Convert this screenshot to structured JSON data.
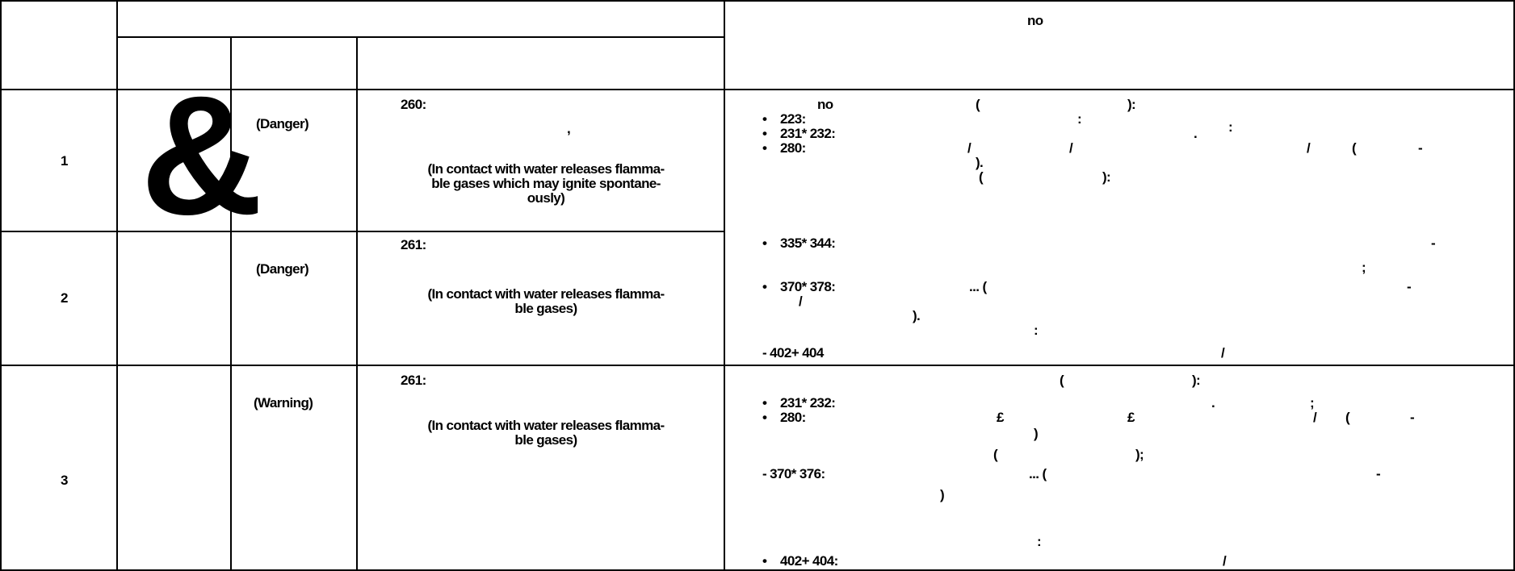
{
  "header": {
    "right_top": "no"
  },
  "rows": [
    {
      "num": "1",
      "pictogram": "&",
      "signal": "(Danger)",
      "hazard": {
        "code": "260:",
        "mark": ",",
        "en": [
          "(In contact with water releases flamma-",
          "ble gases which may ignite spontane-",
          "ously)"
        ]
      }
    },
    {
      "num": "2",
      "signal": "(Danger)",
      "hazard": {
        "code": "261:",
        "en": [
          "(In contact with water releases flamma-",
          "ble gases)"
        ]
      }
    },
    {
      "num": "3",
      "signal": "(Warning)",
      "hazard": {
        "code": "261:",
        "en": [
          "(In contact with water releases flamma-",
          "ble gases)"
        ]
      }
    }
  ],
  "precautions_1_2": {
    "l1_no": "no",
    "l1_paren": "(",
    "l1_close": "):",
    "b1_code": "223:",
    "b1_colon": ":",
    "b2_code": "231* 232:",
    "b2_dot": ".",
    "b2_colon": ":",
    "b3_code": "280:",
    "b3_s1": "/",
    "b3_s2": "/",
    "b3_s3": "/",
    "b3_paren": "(",
    "b3_dash": "-",
    "b3_close": ").",
    "l2_paren": "(",
    "l2_close": "):",
    "b4_code": "335* 344:",
    "b4_dash": "-",
    "b4_semi": ";",
    "b5_code": "370* 378:",
    "b5_ell": "... (",
    "b5_dash": "-",
    "b5_slash": "/",
    "b5_close": ").",
    "l3_colon": ":",
    "b6_code": "- 402+ 404",
    "b6_slash": "/"
  },
  "precautions_3": {
    "l1_paren": "(",
    "l1_close": "):",
    "b1_code": "231* 232:",
    "b1_dot": ".",
    "b1_semi": ";",
    "b2_code": "280:",
    "b2_p1": "£",
    "b2_p2": "£",
    "b2_slash": "/",
    "b2_paren": "(",
    "b2_dash": "-",
    "b2_close": ")",
    "l2_paren": "(",
    "l2_close": ");",
    "b3_code": "- 370* 376:",
    "b3_ell": "... (",
    "b3_dash": "-",
    "b3_close": ")",
    "l3_colon": ":",
    "b4_code": "402+ 404:",
    "b4_slash": "/"
  }
}
